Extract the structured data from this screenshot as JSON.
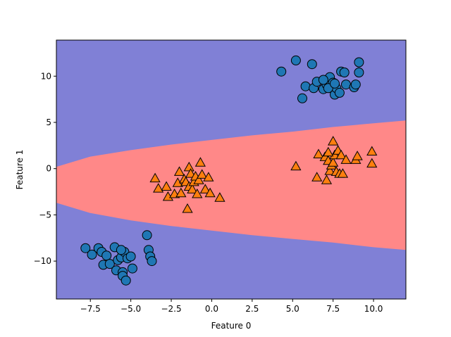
{
  "chart_data": {
    "type": "scatter",
    "title": "",
    "xlabel": "Feature 0",
    "ylabel": "Feature 1",
    "xlim": [
      -9.6,
      12.0
    ],
    "ylim": [
      -14.1,
      13.9
    ],
    "xticks": [
      -7.5,
      -5.0,
      -2.5,
      0.0,
      2.5,
      5.0,
      7.5,
      10.0
    ],
    "xtick_labels": [
      "−7.5",
      "−5.0",
      "−2.5",
      "0.0",
      "2.5",
      "5.0",
      "7.5",
      "10.0"
    ],
    "yticks": [
      -10,
      -5,
      0,
      5,
      10
    ],
    "ytick_labels": [
      "−10",
      "−5",
      "0",
      "5",
      "10"
    ],
    "grid": false,
    "legend": "none",
    "decision_regions": {
      "description": "parabolic boundary opening toward positive Feature 0",
      "class_0_region_color": "#8080d6",
      "class_1_region_color": "#ff8888",
      "upper_boundary": [
        [
          -9.6,
          0.2
        ],
        [
          -7.5,
          1.3
        ],
        [
          -5.0,
          2.0
        ],
        [
          -2.5,
          2.6
        ],
        [
          0.0,
          3.1
        ],
        [
          2.5,
          3.6
        ],
        [
          5.0,
          4.0
        ],
        [
          7.5,
          4.5
        ],
        [
          10.0,
          4.9
        ],
        [
          12.0,
          5.2
        ]
      ],
      "lower_boundary": [
        [
          -9.6,
          -3.7
        ],
        [
          -7.5,
          -4.8
        ],
        [
          -5.0,
          -5.6
        ],
        [
          -2.5,
          -6.2
        ],
        [
          0.0,
          -6.7
        ],
        [
          2.5,
          -7.2
        ],
        [
          5.0,
          -7.6
        ],
        [
          7.5,
          -8.0
        ],
        [
          10.0,
          -8.5
        ],
        [
          12.0,
          -8.8
        ]
      ]
    },
    "series": [
      {
        "marker": "circle",
        "color": "#1f77b4",
        "points": [
          [
            4.3,
            10.5
          ],
          [
            5.2,
            11.7
          ],
          [
            6.2,
            11.3
          ],
          [
            5.6,
            7.6
          ],
          [
            5.8,
            8.9
          ],
          [
            6.3,
            8.7
          ],
          [
            6.5,
            9.4
          ],
          [
            6.9,
            8.6
          ],
          [
            7.1,
            9.1
          ],
          [
            7.3,
            9.9
          ],
          [
            7.5,
            9.3
          ],
          [
            7.6,
            8.0
          ],
          [
            7.7,
            8.7
          ],
          [
            7.9,
            8.2
          ],
          [
            8.0,
            10.5
          ],
          [
            8.2,
            10.4
          ],
          [
            8.3,
            9.1
          ],
          [
            8.8,
            8.8
          ],
          [
            8.9,
            9.1
          ],
          [
            9.1,
            11.5
          ],
          [
            9.1,
            10.4
          ],
          [
            7.2,
            8.7
          ],
          [
            6.9,
            9.6
          ],
          [
            7.6,
            9.2
          ],
          [
            -7.8,
            -8.6
          ],
          [
            -7.4,
            -9.3
          ],
          [
            -7.0,
            -8.6
          ],
          [
            -6.8,
            -9.0
          ],
          [
            -6.7,
            -10.4
          ],
          [
            -6.5,
            -9.4
          ],
          [
            -6.3,
            -10.3
          ],
          [
            -6.0,
            -8.5
          ],
          [
            -5.9,
            -11.0
          ],
          [
            -5.8,
            -9.9
          ],
          [
            -5.6,
            -9.6
          ],
          [
            -5.5,
            -11.2
          ],
          [
            -5.5,
            -11.6
          ],
          [
            -5.4,
            -9.0
          ],
          [
            -5.3,
            -12.1
          ],
          [
            -5.2,
            -9.7
          ],
          [
            -5.0,
            -9.5
          ],
          [
            -4.9,
            -10.8
          ],
          [
            -4.0,
            -7.2
          ],
          [
            -3.9,
            -8.8
          ],
          [
            -3.8,
            -9.5
          ],
          [
            -3.7,
            -10.0
          ],
          [
            -5.6,
            -8.8
          ]
        ]
      },
      {
        "marker": "triangle",
        "color": "#ff7f0e",
        "points": [
          [
            -3.5,
            -1.1
          ],
          [
            -3.3,
            -2.2
          ],
          [
            -2.8,
            -2.0
          ],
          [
            -2.7,
            -3.1
          ],
          [
            -2.3,
            -2.8
          ],
          [
            -2.1,
            -1.6
          ],
          [
            -2.0,
            -0.4
          ],
          [
            -1.9,
            -2.7
          ],
          [
            -1.7,
            -1.2
          ],
          [
            -1.6,
            -1.5
          ],
          [
            -1.4,
            0.1
          ],
          [
            -1.4,
            -2.0
          ],
          [
            -1.3,
            -0.6
          ],
          [
            -1.2,
            -2.3
          ],
          [
            -1.1,
            -1.5
          ],
          [
            -1.0,
            -0.9
          ],
          [
            -0.9,
            -2.8
          ],
          [
            -0.8,
            -1.3
          ],
          [
            -0.7,
            0.6
          ],
          [
            -0.6,
            -0.7
          ],
          [
            -0.4,
            -2.3
          ],
          [
            -0.2,
            -1.0
          ],
          [
            -0.1,
            -2.7
          ],
          [
            0.5,
            -3.2
          ],
          [
            -1.5,
            -4.4
          ],
          [
            5.2,
            0.2
          ],
          [
            6.5,
            -1.0
          ],
          [
            6.6,
            1.5
          ],
          [
            7.0,
            1.2
          ],
          [
            7.1,
            -1.3
          ],
          [
            7.2,
            0.8
          ],
          [
            7.3,
            -0.3
          ],
          [
            7.4,
            0.3
          ],
          [
            7.5,
            2.9
          ],
          [
            7.5,
            0.6
          ],
          [
            7.6,
            1.4
          ],
          [
            7.7,
            -0.4
          ],
          [
            7.8,
            1.9
          ],
          [
            7.9,
            -0.6
          ],
          [
            8.0,
            1.4
          ],
          [
            8.1,
            -0.6
          ],
          [
            8.3,
            0.9
          ],
          [
            8.9,
            0.9
          ],
          [
            9.0,
            1.3
          ],
          [
            9.9,
            1.8
          ],
          [
            9.9,
            0.5
          ],
          [
            7.2,
            1.7
          ]
        ]
      }
    ]
  }
}
